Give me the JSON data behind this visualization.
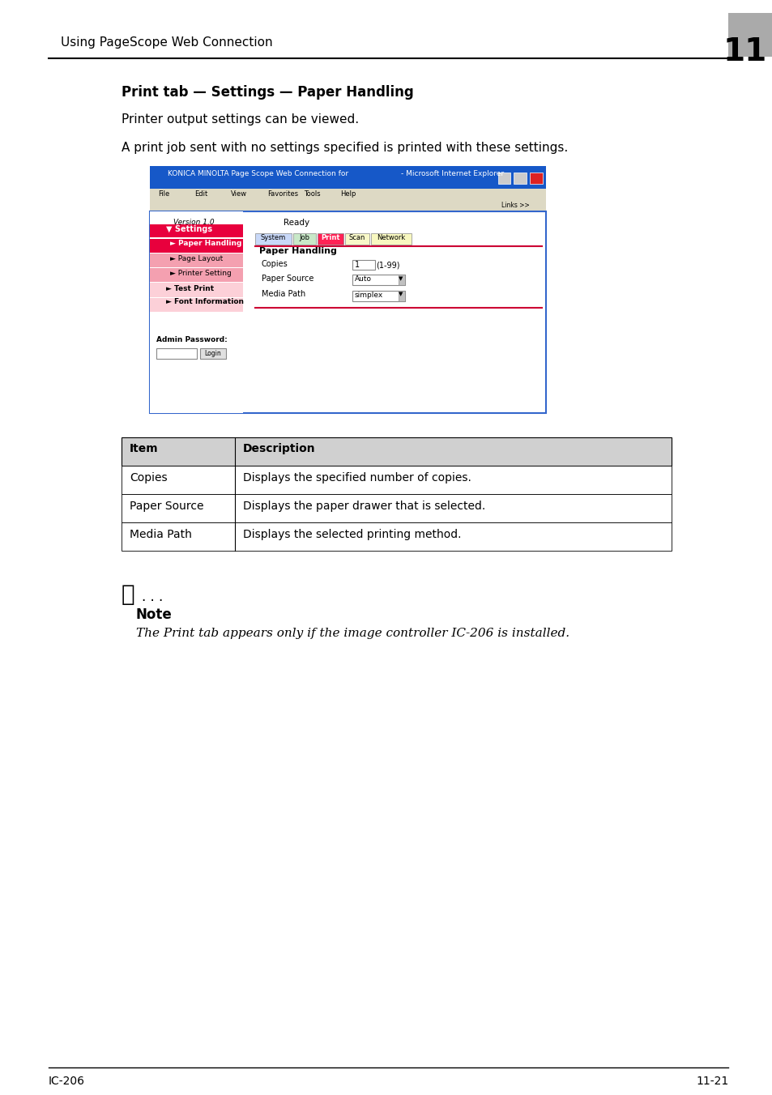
{
  "page_title": "Using PageScope Web Connection",
  "chapter_num": "11",
  "section_title": "Print tab — Settings — Paper Handling",
  "para1": "Printer output settings can be viewed.",
  "para2": "A print job sent with no settings specified is printed with these settings.",
  "table_headers": [
    "Item",
    "Description"
  ],
  "table_rows": [
    [
      "Copies",
      "Displays the specified number of copies."
    ],
    [
      "Paper Source",
      "Displays the paper drawer that is selected."
    ],
    [
      "Media Path",
      "Displays the selected printing method."
    ]
  ],
  "note_label": "Note",
  "note_text": "The Print tab appears only if the image controller IC-206 is installed.",
  "footer_left": "IC-206",
  "footer_right": "11-21",
  "bg_color": "#ffffff",
  "text_color": "#000000"
}
